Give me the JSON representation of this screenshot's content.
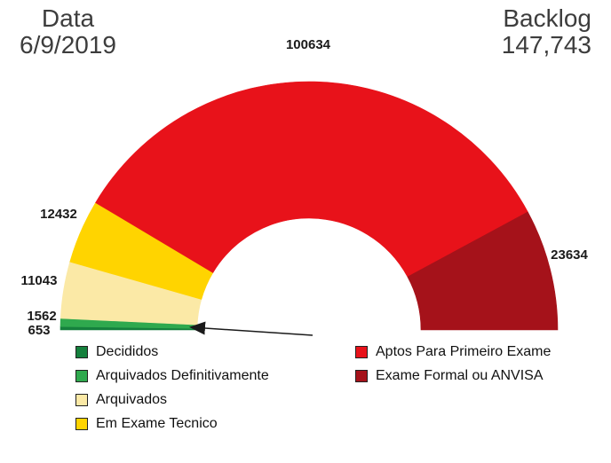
{
  "header": {
    "date_label": "Data",
    "date_value": "6/9/2019",
    "backlog_label": "Backlog",
    "backlog_value": "147,743"
  },
  "chart_data": {
    "type": "pie",
    "variant": "half-donut",
    "start_angle_deg": 180,
    "sweep_deg": 180,
    "inner_radius_ratio": 0.45,
    "grid": false,
    "legend_position": "bottom-two-columns",
    "annotation": "arrow pointing to smallest slices",
    "slices": [
      {
        "label": "Decididos",
        "value": 653,
        "color": "#15803D"
      },
      {
        "label": "Arquivados Definitivamente",
        "value": 1562,
        "color": "#2FA94E"
      },
      {
        "label": "Arquivados",
        "value": 11043,
        "color": "#FBE9A6"
      },
      {
        "label": "Em Exame Tecnico",
        "value": 12432,
        "color": "#FFD400"
      },
      {
        "label": "Aptos Para Primeiro Exame",
        "value": 100634,
        "color": "#E8121A"
      },
      {
        "label": "Exame Formal ou ANVISA",
        "value": 23634,
        "color": "#A5121A"
      }
    ]
  }
}
